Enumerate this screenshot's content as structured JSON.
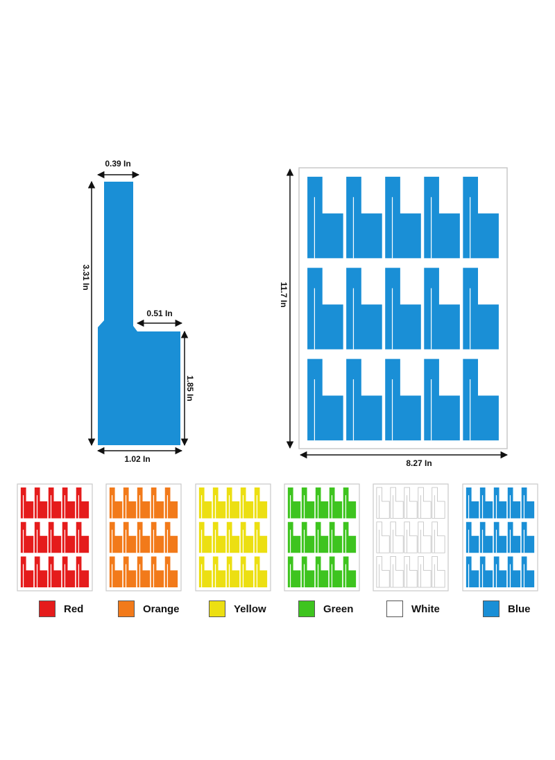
{
  "dimensions": {
    "single_label_top_width": "0.39 In",
    "single_label_height": "3.31 In",
    "single_label_step": "0.51 In",
    "single_label_flag_height": "1.85 In",
    "single_label_bottom_width": "1.02 In",
    "sheet_height": "11.7 In",
    "sheet_width": "8.27 In"
  },
  "colors": {
    "label_blue": "#1a8fd6",
    "sheet_border": "#c9c9c9",
    "arrow": "#111111"
  },
  "swatches": [
    {
      "label": "Red",
      "color": "#e51c1c"
    },
    {
      "label": "Orange",
      "color": "#f27a1a"
    },
    {
      "label": "Yellow",
      "color": "#ecdf12"
    },
    {
      "label": "Green",
      "color": "#3ec41f"
    },
    {
      "label": "White",
      "color": "#ffffff"
    },
    {
      "label": "Blue",
      "color": "#1a8fd6"
    }
  ]
}
